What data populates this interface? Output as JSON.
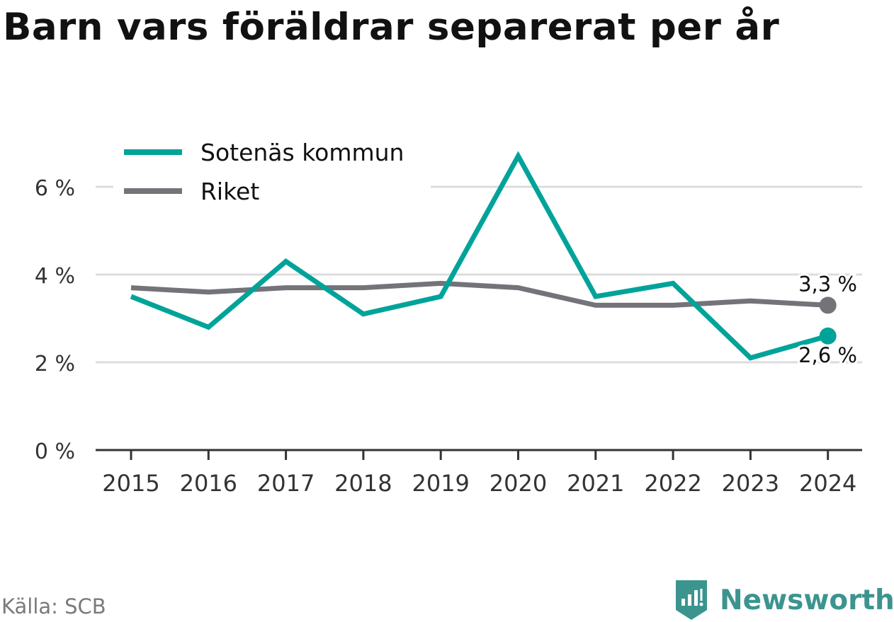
{
  "title": "Barn vars föräldrar separerat per år",
  "source": "Källa: SCB",
  "brand": "Newsworthy",
  "colors": {
    "sotenas": "#00a39a",
    "riket": "#747379",
    "grid": "#dcdcdc",
    "axis": "#333333"
  },
  "chart_data": {
    "type": "line",
    "categories": [
      "2015",
      "2016",
      "2017",
      "2018",
      "2019",
      "2020",
      "2021",
      "2022",
      "2023",
      "2024"
    ],
    "series": [
      {
        "name": "Sotenäs kommun",
        "values": [
          3.5,
          2.8,
          4.3,
          3.1,
          3.5,
          6.7,
          3.5,
          3.8,
          2.1,
          2.6
        ],
        "end_label": "2,6 %"
      },
      {
        "name": "Riket",
        "values": [
          3.7,
          3.6,
          3.7,
          3.7,
          3.8,
          3.7,
          3.3,
          3.3,
          3.4,
          3.3
        ],
        "end_label": "3,3 %"
      }
    ],
    "yticks": [
      0,
      2,
      4,
      6
    ],
    "ytick_labels": [
      "0 %",
      "2 %",
      "4 %",
      "6 %"
    ],
    "ylim": [
      0,
      7
    ],
    "grid": true,
    "legend": "top-left"
  }
}
